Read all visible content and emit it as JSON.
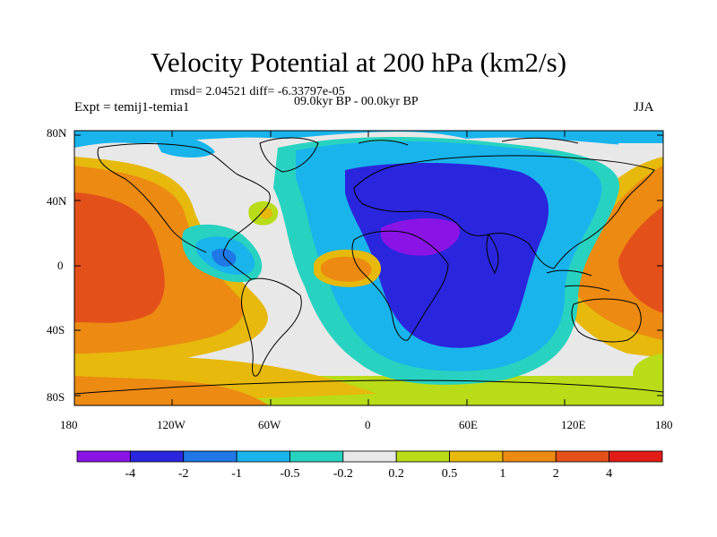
{
  "title": "Velocity Potential at 200 hPa (km2/s)",
  "stats_line": "rmsd= 2.04521 diff= -6.33797e-05",
  "period_line": "09.0kyr BP - 00.0kyr BP",
  "experiment_line": "Expt = temij1-temia1",
  "season": "JJA",
  "lat_labels": [
    "80N",
    "40N",
    "0",
    "40S",
    "80S"
  ],
  "lon_labels": [
    "180",
    "120W",
    "60W",
    "0",
    "60E",
    "120E",
    "180"
  ],
  "colorbar": {
    "labels": [
      "-4",
      "-2",
      "-1",
      "-0.5",
      "-0.2",
      "0.2",
      "0.5",
      "1",
      "2",
      "4"
    ],
    "colors": [
      "#8a14e6",
      "#2a26dd",
      "#1f78e6",
      "#19b4ec",
      "#28d2c0",
      "#e8e8e8",
      "#b8dc18",
      "#e6b90c",
      "#ec8a12",
      "#e4501a",
      "#e21c16"
    ]
  }
}
